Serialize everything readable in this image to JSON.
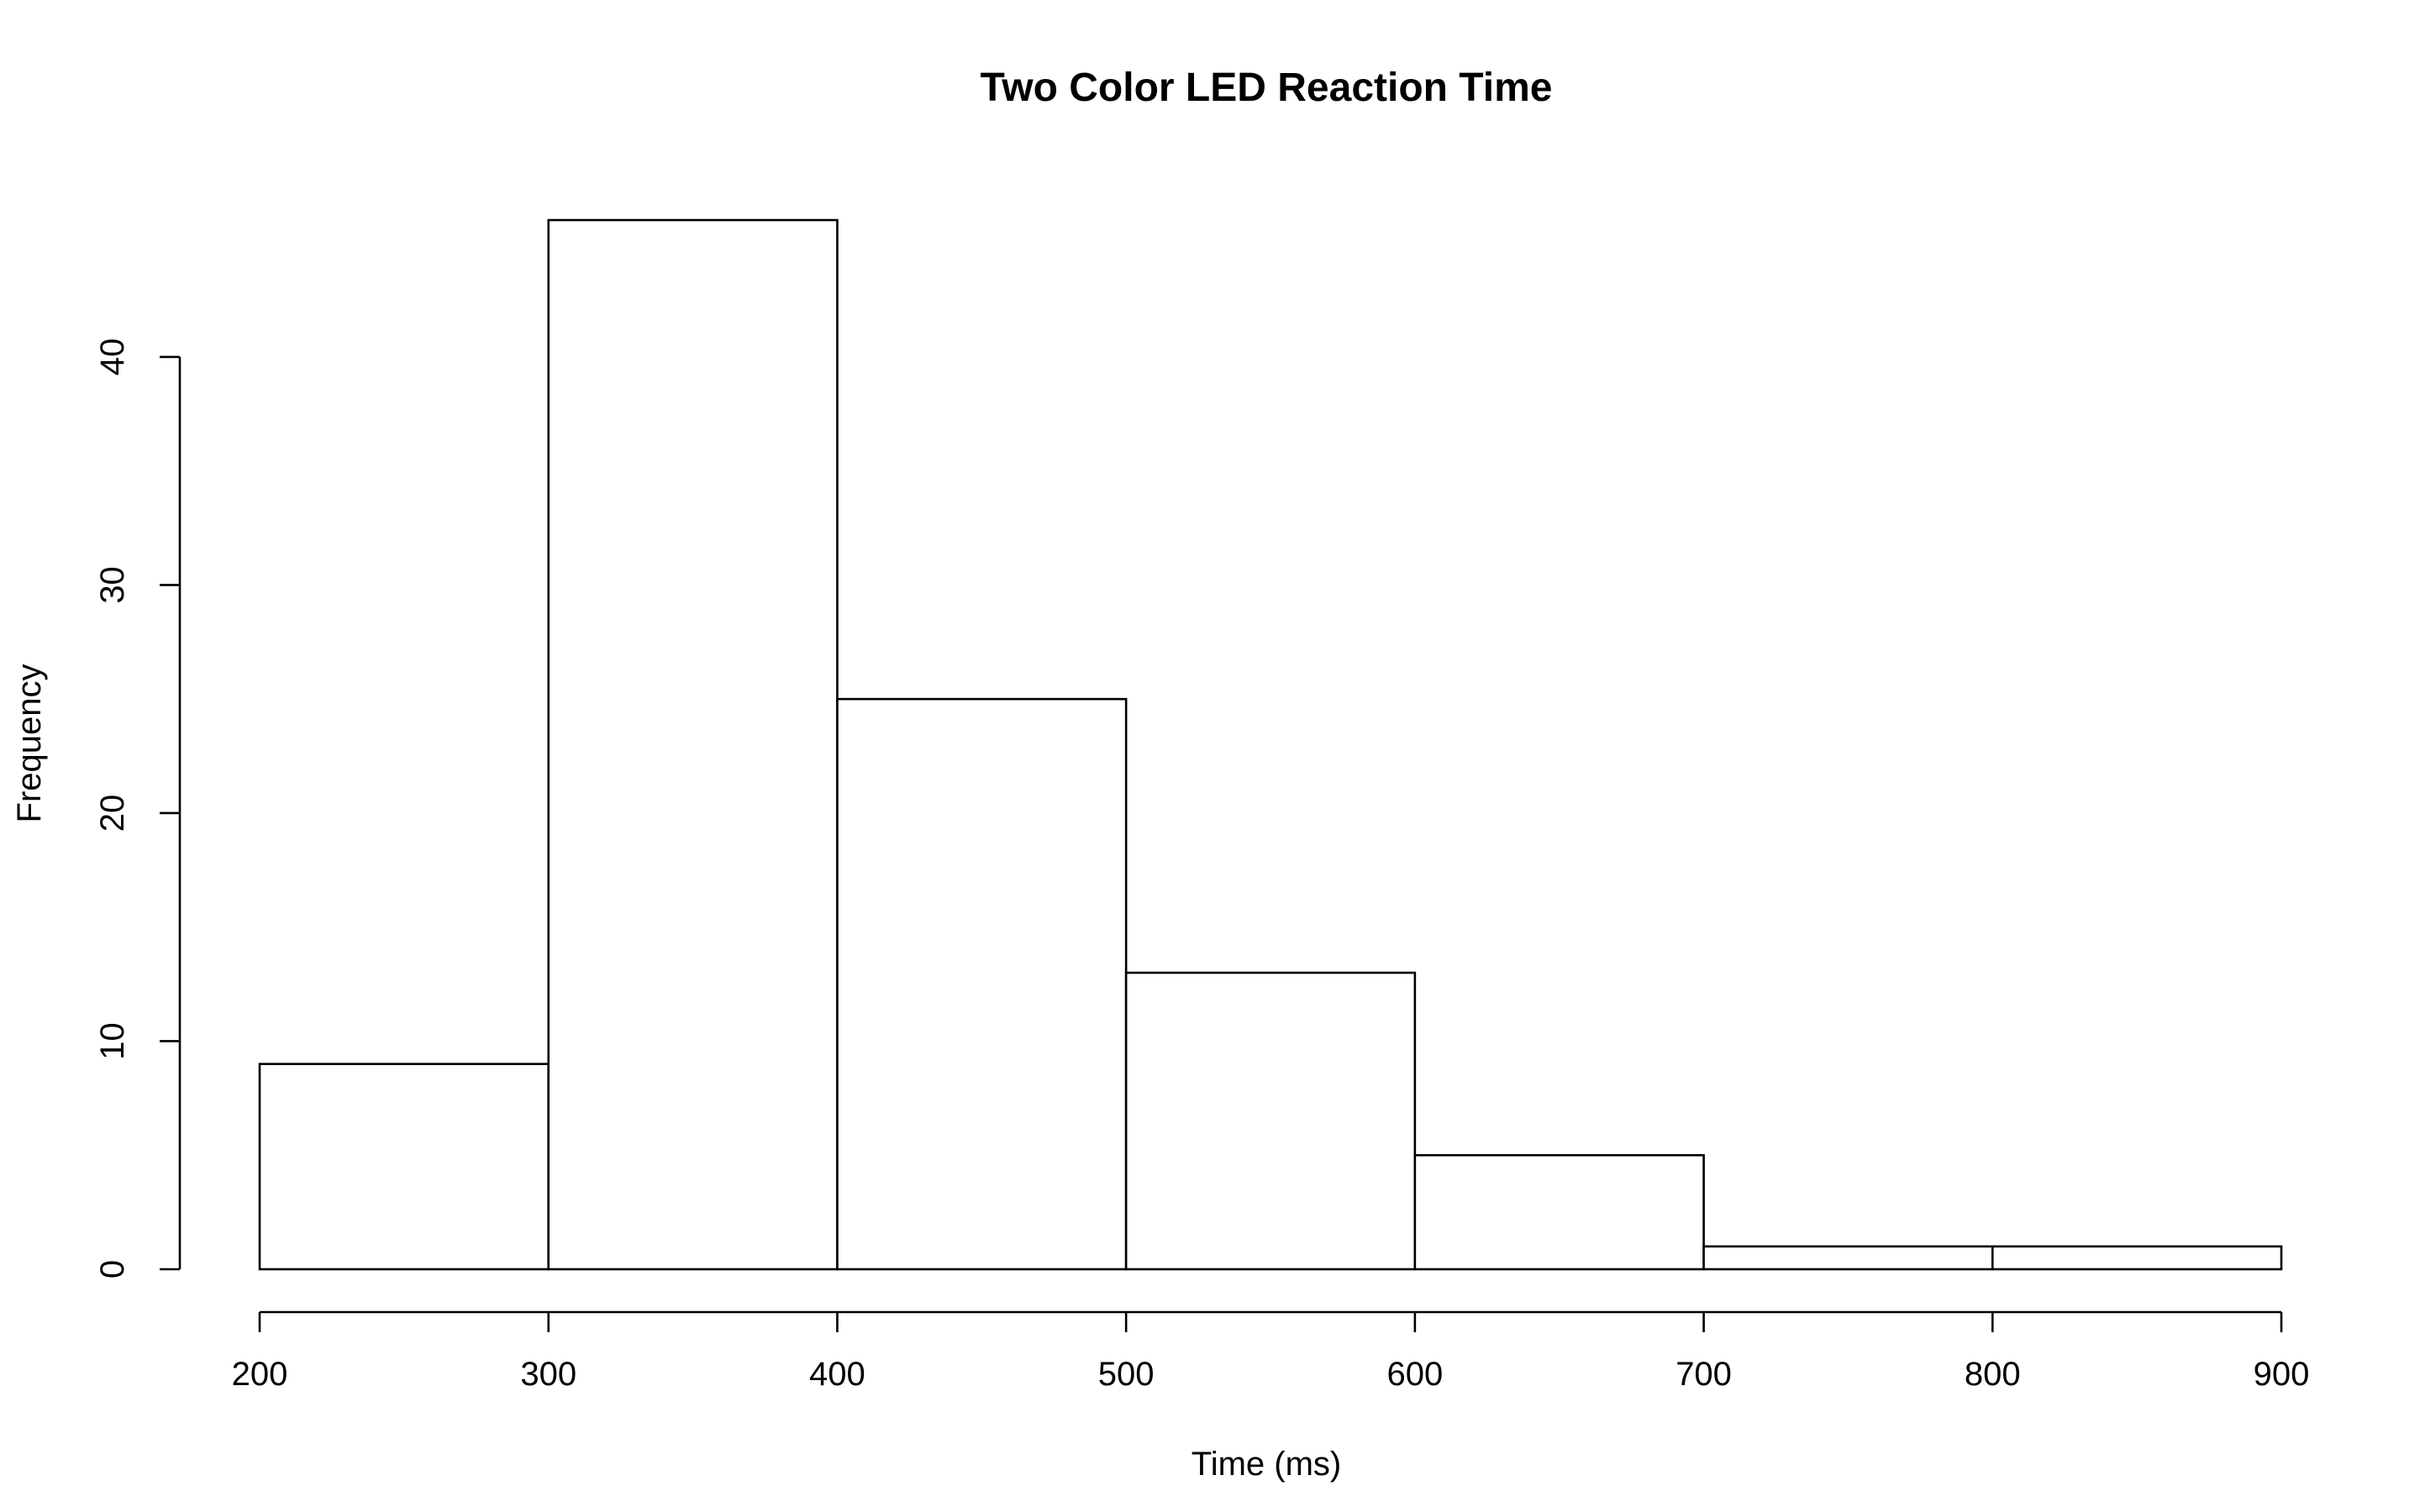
{
  "chart_data": {
    "type": "bar",
    "title": "Two Color LED Reaction Time",
    "xlabel": "Time (ms)",
    "ylabel": "Frequency",
    "bins": [
      {
        "from": 200,
        "to": 300,
        "count": 9
      },
      {
        "from": 300,
        "to": 400,
        "count": 46
      },
      {
        "from": 400,
        "to": 500,
        "count": 25
      },
      {
        "from": 500,
        "to": 600,
        "count": 13
      },
      {
        "from": 600,
        "to": 700,
        "count": 5
      },
      {
        "from": 700,
        "to": 800,
        "count": 1
      },
      {
        "from": 800,
        "to": 900,
        "count": 1
      }
    ],
    "xlim": [
      200,
      900
    ],
    "ylim": [
      0,
      46
    ],
    "x_ticks": [
      "200",
      "300",
      "400",
      "500",
      "600",
      "700",
      "800",
      "900"
    ],
    "y_ticks": [
      "0",
      "10",
      "20",
      "30",
      "40"
    ],
    "grid": false,
    "legend": "none",
    "colors": {
      "bar_fill": "#ffffff",
      "bar_stroke": "#000000",
      "text": "#000000"
    }
  }
}
